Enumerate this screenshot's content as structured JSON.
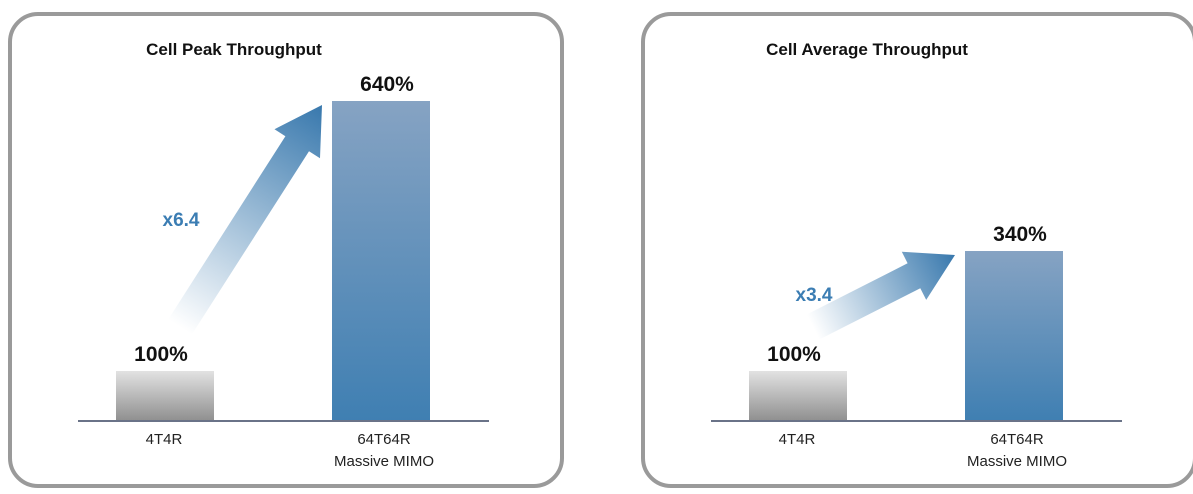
{
  "chart_data": [
    {
      "type": "bar",
      "title": "Cell Peak Throughput",
      "categories": [
        "4T4R",
        "64T64R Massive MIMO"
      ],
      "category_lines": [
        [
          "4T4R"
        ],
        [
          "64T64R",
          "Massive MIMO"
        ]
      ],
      "values": [
        100,
        640
      ],
      "value_labels": [
        "100%",
        "640%"
      ],
      "annotation": "x6.4",
      "ylim": [
        0,
        700
      ],
      "colors": {
        "baseline": "#8f8f8f",
        "massive": "#3f7fb2"
      }
    },
    {
      "type": "bar",
      "title": "Cell Average Throughput",
      "categories": [
        "4T4R",
        "64T64R Massive MIMO"
      ],
      "category_lines": [
        [
          "4T4R"
        ],
        [
          "64T64R",
          "Massive MIMO"
        ]
      ],
      "values": [
        100,
        340
      ],
      "value_labels": [
        "100%",
        "340%"
      ],
      "annotation": "x3.4",
      "ylim": [
        0,
        700
      ],
      "colors": {
        "baseline": "#8f8f8f",
        "massive": "#3f7fb2"
      }
    }
  ],
  "annotation_color": "#3b7db3",
  "axis_color": "#6a7388"
}
